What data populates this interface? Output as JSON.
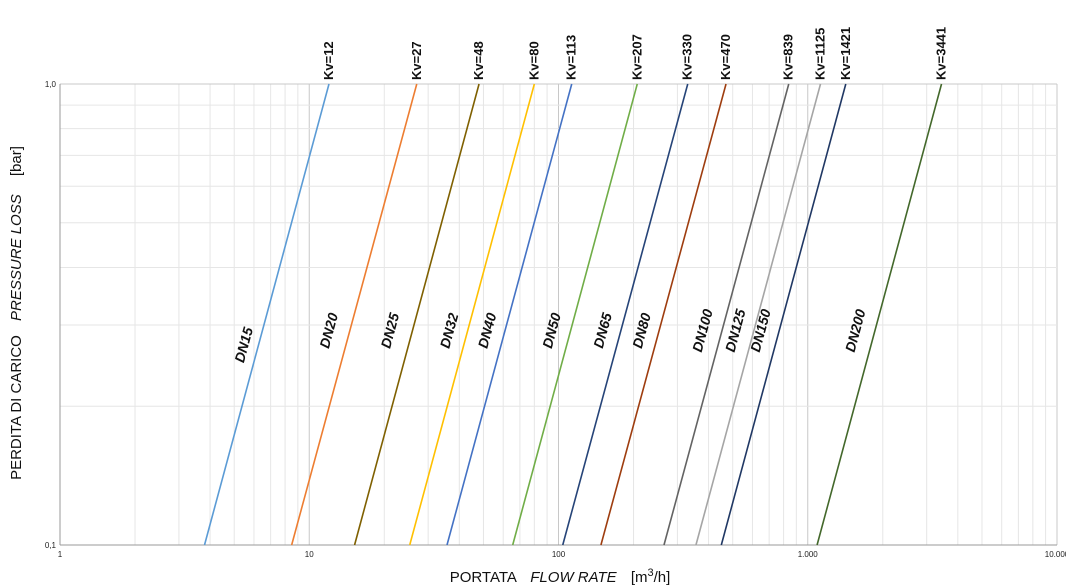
{
  "chart_data": {
    "type": "line",
    "title": "",
    "x_scale": "log",
    "y_scale": "log",
    "xlim": [
      1,
      10000
    ],
    "ylim": [
      0.1,
      1.0
    ],
    "grid": true,
    "xlabel": {
      "main": "PORTATA",
      "italic": "FLOW RATE",
      "unit_prefix": "[m",
      "unit_sup": "3",
      "unit_suffix": "/h]"
    },
    "ylabel": {
      "main": "PERDITA DI CARICO",
      "italic": "PRESSURE LOSS",
      "unit": "[bar]"
    },
    "x_ticks": [
      {
        "value": 1,
        "label": "1"
      },
      {
        "value": 10,
        "label": "10"
      },
      {
        "value": 100,
        "label": "100"
      },
      {
        "value": 1000,
        "label": "1.000"
      },
      {
        "value": 10000,
        "label": "10.000"
      }
    ],
    "y_ticks": [
      {
        "value": 0.1,
        "label": "0,1"
      },
      {
        "value": 1.0,
        "label": "1,0"
      }
    ],
    "series": [
      {
        "name": "DN15",
        "kv_label": "Kv=12",
        "kv": 12,
        "color": "#5b9bd5",
        "label_at": [
          5.7,
          0.27
        ],
        "points": [
          [
            3.8,
            0.1
          ],
          [
            12,
            1.0
          ]
        ]
      },
      {
        "name": "DN20",
        "kv_label": "Kv=27",
        "kv": 27,
        "color": "#ed7d31",
        "label_at": [
          12.5,
          0.29
        ],
        "points": [
          [
            8.5,
            0.1
          ],
          [
            27,
            1.0
          ]
        ]
      },
      {
        "name": "DN25",
        "kv_label": "Kv=48",
        "kv": 48,
        "color": "#7f6000",
        "label_at": [
          22,
          0.29
        ],
        "points": [
          [
            15.2,
            0.1
          ],
          [
            48,
            1.0
          ]
        ]
      },
      {
        "name": "DN32",
        "kv_label": "Kv=80",
        "kv": 80,
        "color": "#ffc000",
        "label_at": [
          38,
          0.29
        ],
        "points": [
          [
            25.3,
            0.1
          ],
          [
            80,
            1.0
          ]
        ]
      },
      {
        "name": "DN40",
        "kv_label": "Kv=113",
        "kv": 113,
        "color": "#4472c4",
        "label_at": [
          54,
          0.29
        ],
        "points": [
          [
            35.7,
            0.1
          ],
          [
            113,
            1.0
          ]
        ]
      },
      {
        "name": "DN50",
        "kv_label": "Kv=207",
        "kv": 207,
        "color": "#70ad47",
        "label_at": [
          98,
          0.29
        ],
        "points": [
          [
            65.5,
            0.1
          ],
          [
            207,
            1.0
          ]
        ]
      },
      {
        "name": "DN65",
        "kv_label": "Kv=330",
        "kv": 330,
        "color": "#264478",
        "label_at": [
          157,
          0.29
        ],
        "points": [
          [
            104,
            0.1
          ],
          [
            330,
            1.0
          ]
        ]
      },
      {
        "name": "DN80",
        "kv_label": "Kv=470",
        "kv": 470,
        "color": "#9e3d0f",
        "label_at": [
          225,
          0.29
        ],
        "points": [
          [
            148,
            0.1
          ],
          [
            470,
            1.0
          ]
        ]
      },
      {
        "name": "DN100",
        "kv_label": "Kv=839",
        "kv": 839,
        "color": "#636363",
        "label_at": [
          395,
          0.29
        ],
        "points": [
          [
            265,
            0.1
          ],
          [
            839,
            1.0
          ]
        ]
      },
      {
        "name": "DN125",
        "kv_label": "Kv=1125",
        "kv": 1125,
        "color": "#a5a5a5",
        "label_at": [
          535,
          0.29
        ],
        "points": [
          [
            356,
            0.1
          ],
          [
            1125,
            1.0
          ]
        ]
      },
      {
        "name": "DN150",
        "kv_label": "Kv=1421",
        "kv": 1421,
        "color": "#203864",
        "label_at": [
          675,
          0.29
        ],
        "points": [
          [
            450,
            0.1
          ],
          [
            1421,
            1.0
          ]
        ]
      },
      {
        "name": "DN200",
        "kv_label": "Kv=3441",
        "kv": 3441,
        "color": "#43682b",
        "label_at": [
          1620,
          0.29
        ],
        "points": [
          [
            1090,
            0.1
          ],
          [
            3441,
            1.0
          ]
        ]
      }
    ]
  }
}
